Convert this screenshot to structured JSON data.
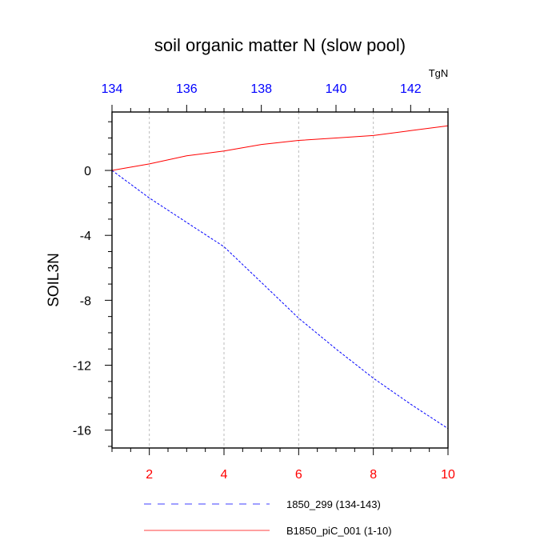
{
  "chart_data": {
    "type": "line",
    "title": "soil organic matter N (slow pool)",
    "ylabel": "SOIL3N",
    "top_axis_units": "TgN",
    "colors": {
      "bottom_axis": "#ff0000",
      "top_axis": "#0000ff",
      "grid": "#bbbbbb"
    },
    "bottom_axis": {
      "range": [
        1,
        10
      ],
      "tick_labels": [
        "2",
        "4",
        "6",
        "8",
        "10"
      ],
      "tick_values": [
        2,
        4,
        6,
        8,
        10
      ]
    },
    "top_axis": {
      "range": [
        134,
        143
      ],
      "tick_labels": [
        "134",
        "136",
        "138",
        "140",
        "142"
      ],
      "tick_values": [
        134,
        136,
        138,
        140,
        142
      ]
    },
    "y_axis": {
      "range": [
        -17.1,
        3.6
      ],
      "tick_labels": [
        "0",
        "-4",
        "-8",
        "-12",
        "-16"
      ],
      "tick_values": [
        0,
        -4,
        -8,
        -12,
        -16
      ]
    },
    "grid_x": true,
    "legend_position": "bottom",
    "series": [
      {
        "name": "1850_299 (134-143)",
        "color": "#0000ff",
        "dash": "dashed",
        "x_axis": "top",
        "x": [
          134,
          135,
          136,
          137,
          138,
          139,
          140,
          141,
          142,
          143
        ],
        "y": [
          0,
          -1.7,
          -3.2,
          -4.7,
          -6.9,
          -9.1,
          -11.0,
          -12.8,
          -14.4,
          -15.9
        ]
      },
      {
        "name": "B1850_piC_001 (1-10)",
        "color": "#ff0000",
        "dash": "solid",
        "x_axis": "bottom",
        "x": [
          1,
          2,
          3,
          4,
          5,
          6,
          7,
          8,
          9,
          10
        ],
        "y": [
          0,
          0.4,
          0.9,
          1.2,
          1.6,
          1.85,
          2.0,
          2.15,
          2.45,
          2.75
        ]
      }
    ]
  }
}
